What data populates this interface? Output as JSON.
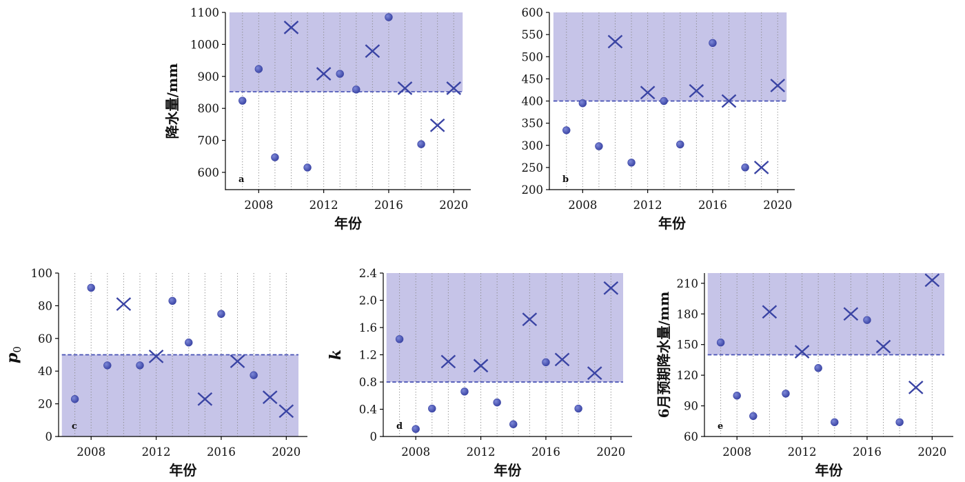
{
  "colors": {
    "band": "#c6c4e8",
    "threshold_line": "#4650b4",
    "marker": "#3a44a4",
    "marker_highlight": "#7d88d8",
    "grid": "#8a8a8a",
    "axis": "#000000"
  },
  "chart_data": [
    {
      "type": "scatter",
      "panel_label": "a",
      "xlabel": "年份",
      "ylabel": "降水量/mm",
      "xlim": [
        2005.95,
        2021.05
      ],
      "ylim": [
        546,
        1100
      ],
      "xticks": [
        2008,
        2012,
        2016,
        2020
      ],
      "xtick_labels": [
        "2008",
        "2012",
        "2016",
        "2020"
      ],
      "yticks": [
        600,
        700,
        800,
        900,
        1000,
        1100
      ],
      "ytick_labels": [
        "600",
        "700",
        "800",
        "900",
        "1000",
        "1100"
      ],
      "grid_x": [
        2007,
        2008,
        2009,
        2010,
        2011,
        2012,
        2013,
        2014,
        2015,
        2016,
        2017,
        2018,
        2019,
        2020
      ],
      "threshold": 852,
      "shaded_side": "above",
      "shaded_x": [
        2006.2,
        2020.55
      ],
      "series": [
        {
          "marker": "circle",
          "x": [
            2007,
            2008,
            2009,
            2011,
            2013,
            2014,
            2016,
            2018
          ],
          "y": [
            824,
            923,
            647,
            615,
            908,
            859,
            1085,
            688
          ]
        },
        {
          "marker": "cross",
          "x": [
            2010,
            2012,
            2015,
            2017,
            2019,
            2020
          ],
          "y": [
            1053,
            908,
            979,
            863,
            747,
            863
          ]
        }
      ]
    },
    {
      "type": "scatter",
      "panel_label": "b",
      "xlabel": "年份",
      "xlim": [
        2005.95,
        2021.05
      ],
      "ylim": [
        200,
        600
      ],
      "xticks": [
        2008,
        2012,
        2016,
        2020
      ],
      "xtick_labels": [
        "2008",
        "2012",
        "2016",
        "2020"
      ],
      "yticks": [
        200,
        250,
        300,
        350,
        400,
        450,
        500,
        550,
        600
      ],
      "ytick_labels": [
        "200",
        "250",
        "300",
        "350",
        "400",
        "450",
        "500",
        "550",
        "600"
      ],
      "grid_x": [
        2007,
        2008,
        2009,
        2010,
        2011,
        2012,
        2013,
        2014,
        2015,
        2016,
        2017,
        2018,
        2019,
        2020
      ],
      "threshold": 400,
      "shaded_side": "above",
      "shaded_x": [
        2006.2,
        2020.55
      ],
      "series": [
        {
          "marker": "circle",
          "x": [
            2007,
            2008,
            2009,
            2011,
            2013,
            2014,
            2016,
            2018
          ],
          "y": [
            334,
            395,
            298,
            261,
            400,
            302,
            531,
            250
          ]
        },
        {
          "marker": "cross",
          "x": [
            2010,
            2012,
            2015,
            2017,
            2019,
            2020
          ],
          "y": [
            534,
            419,
            423,
            400,
            250,
            435
          ]
        }
      ]
    },
    {
      "type": "scatter",
      "panel_label": "c",
      "xlabel": "年份",
      "ylabel": "p",
      "ylabel_sub": "0",
      "xlim": [
        2006,
        2021.3
      ],
      "ylim": [
        0,
        100
      ],
      "xticks": [
        2008,
        2012,
        2016,
        2020
      ],
      "xtick_labels": [
        "2008",
        "2012",
        "2016",
        "2020"
      ],
      "yticks": [
        0,
        20,
        40,
        60,
        80,
        100
      ],
      "ytick_labels": [
        "0",
        "20",
        "40",
        "60",
        "80",
        "100"
      ],
      "grid_x": [
        2007,
        2008,
        2009,
        2010,
        2011,
        2012,
        2013,
        2014,
        2015,
        2016,
        2017,
        2018,
        2019,
        2020
      ],
      "threshold": 50,
      "shaded_side": "below",
      "shaded_x": [
        2006.2,
        2020.75
      ],
      "series": [
        {
          "marker": "circle",
          "x": [
            2007,
            2008,
            2009,
            2011,
            2013,
            2014,
            2016,
            2018
          ],
          "y": [
            22.9,
            91.0,
            43.5,
            43.5,
            83.0,
            57.5,
            75.0,
            37.5
          ]
        },
        {
          "marker": "cross",
          "x": [
            2010,
            2012,
            2015,
            2017,
            2019,
            2020
          ],
          "y": [
            81.0,
            49.0,
            22.9,
            46.0,
            24.0,
            15.5
          ]
        }
      ]
    },
    {
      "type": "scatter",
      "panel_label": "d",
      "xlabel": "年份",
      "ylabel": "k",
      "xlim": [
        2006,
        2021.3
      ],
      "ylim": [
        0,
        2.4
      ],
      "xticks": [
        2008,
        2012,
        2016,
        2020
      ],
      "xtick_labels": [
        "2008",
        "2012",
        "2016",
        "2020"
      ],
      "yticks": [
        0,
        0.4,
        0.8,
        1.2,
        1.6,
        2.0,
        2.4
      ],
      "ytick_labels": [
        "0",
        "0.4",
        "0.8",
        "1.2",
        "1.6",
        "2.0",
        "2.4"
      ],
      "grid_x": [
        2007,
        2008,
        2009,
        2010,
        2011,
        2012,
        2013,
        2014,
        2015,
        2016,
        2017,
        2018,
        2019,
        2020
      ],
      "threshold": 0.8,
      "shaded_side": "above",
      "shaded_x": [
        2006.2,
        2020.75
      ],
      "series": [
        {
          "marker": "circle",
          "x": [
            2007,
            2008,
            2009,
            2011,
            2013,
            2014,
            2016,
            2018
          ],
          "y": [
            1.43,
            0.11,
            0.41,
            0.66,
            0.5,
            0.18,
            1.09,
            0.41
          ]
        },
        {
          "marker": "cross",
          "x": [
            2010,
            2012,
            2015,
            2017,
            2019,
            2020
          ],
          "y": [
            1.1,
            1.04,
            1.72,
            1.13,
            0.93,
            2.18
          ]
        }
      ]
    },
    {
      "type": "scatter",
      "panel_label": "e",
      "xlabel": "年份",
      "ylabel": "6月预期降水量/mm",
      "xlim": [
        2006,
        2021.3
      ],
      "ylim": [
        60,
        220
      ],
      "xticks": [
        2008,
        2012,
        2016,
        2020
      ],
      "xtick_labels": [
        "2008",
        "2012",
        "2016",
        "2020"
      ],
      "yticks": [
        60,
        90,
        120,
        150,
        180,
        210
      ],
      "ytick_labels": [
        "60",
        "90",
        "120",
        "150",
        "180",
        "210"
      ],
      "grid_x": [
        2007,
        2008,
        2009,
        2010,
        2011,
        2012,
        2013,
        2014,
        2015,
        2016,
        2017,
        2018,
        2019,
        2020
      ],
      "threshold": 140,
      "shaded_side": "above",
      "shaded_x": [
        2006.2,
        2020.75
      ],
      "series": [
        {
          "marker": "circle",
          "x": [
            2007,
            2008,
            2009,
            2011,
            2013,
            2014,
            2016,
            2018
          ],
          "y": [
            152,
            100,
            80,
            102,
            127,
            74,
            174,
            74
          ]
        },
        {
          "marker": "cross",
          "x": [
            2010,
            2012,
            2015,
            2017,
            2019,
            2020
          ],
          "y": [
            182,
            143,
            180,
            148,
            108,
            213
          ]
        }
      ]
    }
  ]
}
